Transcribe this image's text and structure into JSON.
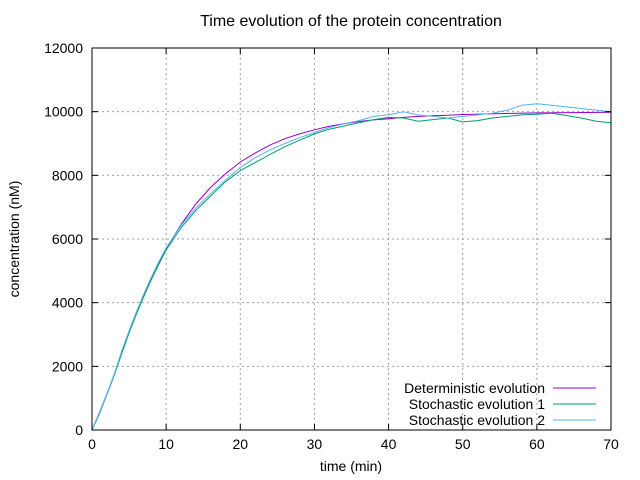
{
  "chart_data": {
    "type": "line",
    "title": "Time evolution of the protein concentration",
    "xlabel": "time (min)",
    "ylabel": "concentration (nM)",
    "xlim": [
      0,
      70
    ],
    "ylim": [
      0,
      12000
    ],
    "xticks": [
      0,
      10,
      20,
      30,
      40,
      50,
      60,
      70
    ],
    "yticks": [
      0,
      2000,
      4000,
      6000,
      8000,
      10000,
      12000
    ],
    "grid": true,
    "legend_position": "bottom-right",
    "series": [
      {
        "name": "Deterministic evolution",
        "color": "#9400d3",
        "x": [
          0,
          1,
          2,
          3,
          4,
          5,
          6,
          7,
          8,
          9,
          10,
          12,
          14,
          16,
          18,
          20,
          22,
          24,
          26,
          28,
          30,
          32,
          34,
          36,
          38,
          40,
          42,
          44,
          46,
          48,
          50,
          55,
          60,
          65,
          70
        ],
        "values": [
          0,
          540,
          1130,
          1730,
          2450,
          3100,
          3700,
          4260,
          4780,
          5250,
          5700,
          6450,
          7100,
          7620,
          8050,
          8420,
          8700,
          8950,
          9150,
          9300,
          9430,
          9540,
          9620,
          9690,
          9740,
          9780,
          9820,
          9850,
          9870,
          9890,
          9910,
          9940,
          9960,
          9970,
          9980
        ]
      },
      {
        "name": "Stochastic evolution 1",
        "color": "#009e73",
        "x": [
          0,
          1,
          2,
          3,
          4,
          5,
          6,
          7,
          8,
          9,
          10,
          12,
          14,
          16,
          18,
          20,
          22,
          24,
          26,
          28,
          30,
          32,
          34,
          36,
          38,
          40,
          42,
          44,
          46,
          48,
          50,
          52,
          54,
          56,
          58,
          60,
          62,
          64,
          66,
          68,
          70
        ],
        "values": [
          0,
          500,
          1100,
          1720,
          2400,
          3050,
          3650,
          4200,
          4720,
          5200,
          5650,
          6350,
          6900,
          7350,
          7800,
          8150,
          8400,
          8650,
          8900,
          9100,
          9300,
          9450,
          9550,
          9650,
          9750,
          9820,
          9800,
          9700,
          9750,
          9800,
          9680,
          9720,
          9800,
          9850,
          9900,
          9920,
          9950,
          9880,
          9800,
          9700,
          9650
        ]
      },
      {
        "name": "Stochastic evolution 2",
        "color": "#56b4e9",
        "x": [
          0,
          1,
          2,
          3,
          4,
          5,
          6,
          7,
          8,
          9,
          10,
          12,
          14,
          16,
          18,
          20,
          22,
          24,
          26,
          28,
          30,
          32,
          34,
          36,
          38,
          40,
          42,
          44,
          46,
          48,
          50,
          52,
          54,
          56,
          58,
          60,
          62,
          64,
          66,
          68,
          70
        ],
        "values": [
          0,
          520,
          1120,
          1760,
          2480,
          3120,
          3720,
          4280,
          4800,
          5280,
          5720,
          6420,
          6980,
          7420,
          7850,
          8250,
          8550,
          8800,
          9000,
          9180,
          9350,
          9500,
          9620,
          9720,
          9850,
          9900,
          10000,
          9900,
          9850,
          9800,
          9850,
          9900,
          9950,
          10050,
          10200,
          10250,
          10200,
          10150,
          10100,
          10050,
          10000
        ]
      }
    ]
  }
}
